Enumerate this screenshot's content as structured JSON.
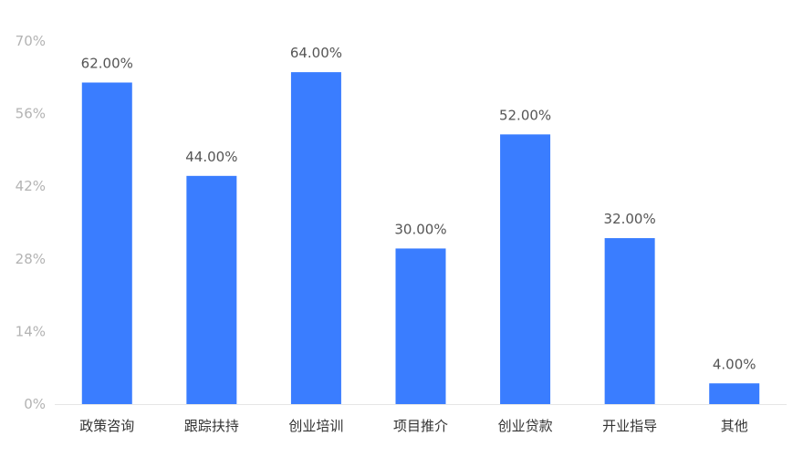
{
  "chart_data": {
    "type": "bar",
    "categories": [
      "政策咨询",
      "跟踪扶持",
      "创业培训",
      "项目推介",
      "创业贷款",
      "开业指导",
      "其他"
    ],
    "values": [
      62,
      44,
      64,
      30,
      52,
      32,
      4
    ],
    "value_labels": [
      "62.00%",
      "44.00%",
      "64.00%",
      "30.00%",
      "52.00%",
      "32.00%",
      "4.00%"
    ],
    "y_ticks": [
      "0%",
      "14%",
      "28%",
      "42%",
      "56%",
      "70%"
    ],
    "ylim": [
      0,
      70
    ],
    "grid": false,
    "bar_color": "#3a7dff",
    "axis_color": "#e6e6e6"
  }
}
